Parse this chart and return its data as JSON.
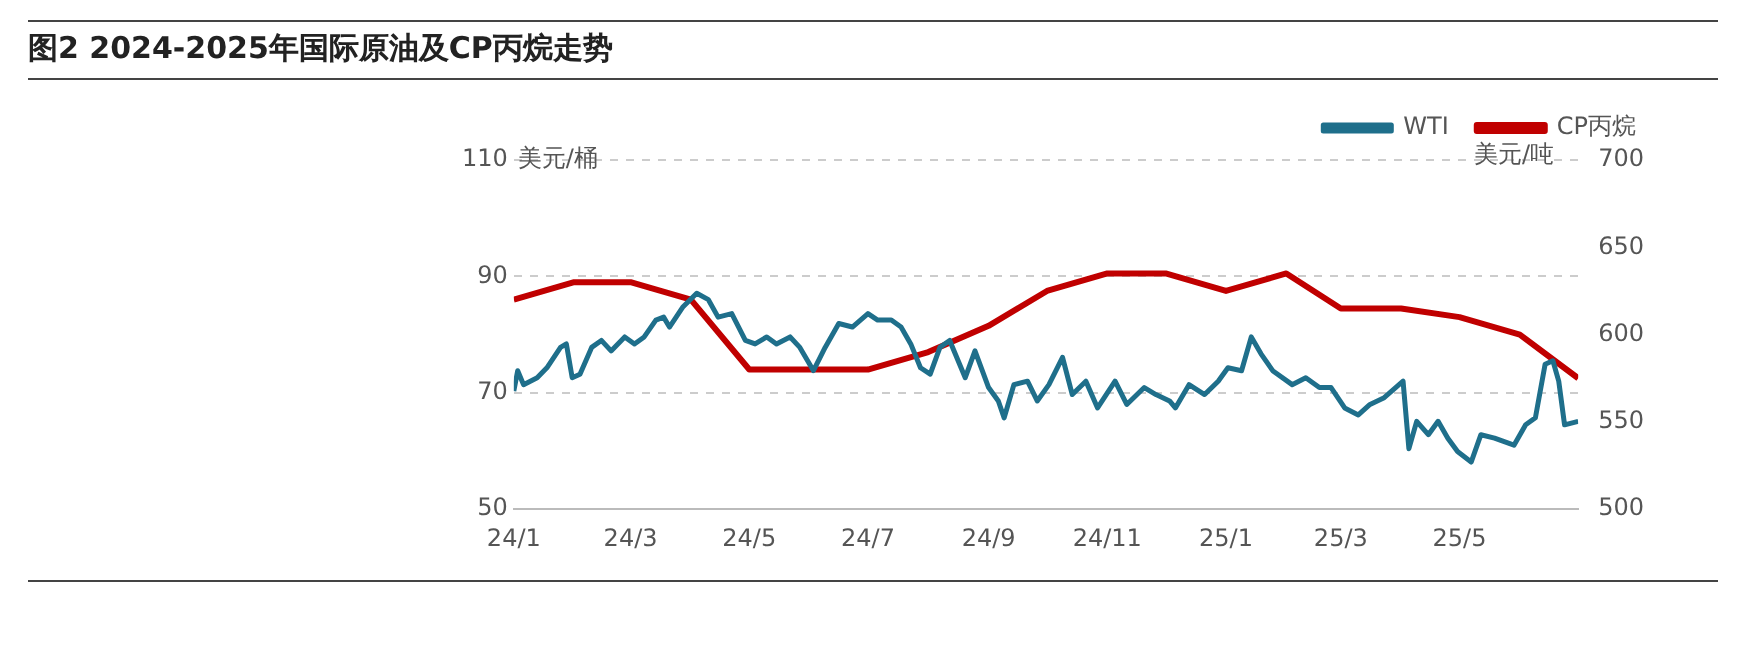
{
  "chart_data": {
    "type": "line",
    "title": "图2 2024-2025年国际原油及CP丙烷走势",
    "ylabel": "美元/桶",
    "y2label": "美元/吨",
    "xlim": [
      "2024-01-01",
      "2025-07-01"
    ],
    "xticks": [
      {
        "value": "2024-01-01",
        "label": "24/1"
      },
      {
        "value": "2024-03-01",
        "label": "24/3"
      },
      {
        "value": "2024-05-01",
        "label": "24/5"
      },
      {
        "value": "2024-07-01",
        "label": "24/7"
      },
      {
        "value": "2024-09-01",
        "label": "24/9"
      },
      {
        "value": "2024-11-01",
        "label": "24/11"
      },
      {
        "value": "2025-01-01",
        "label": "25/1"
      },
      {
        "value": "2025-03-01",
        "label": "25/3"
      },
      {
        "value": "2025-05-01",
        "label": "25/5"
      }
    ],
    "ylim": [
      50,
      110
    ],
    "yticks": [
      50,
      70,
      90,
      110
    ],
    "y2lim": [
      500,
      700
    ],
    "y2ticks": [
      500,
      550,
      600,
      650,
      700
    ],
    "grid": "y",
    "legend": "top right",
    "marker": "none",
    "series": [
      {
        "name": "WTI",
        "color": "#1f6f8b",
        "x": [
          "2024-01-01",
          "2024-01-03",
          "2024-01-06",
          "2024-01-13",
          "2024-01-18",
          "2024-01-25",
          "2024-01-28",
          "2024-01-31",
          "2024-02-04",
          "2024-02-10",
          "2024-02-15",
          "2024-02-20",
          "2024-02-27",
          "2024-03-03",
          "2024-03-08",
          "2024-03-14",
          "2024-03-18",
          "2024-03-21",
          "2024-03-28",
          "2024-04-04",
          "2024-04-10",
          "2024-04-15",
          "2024-04-22",
          "2024-04-29",
          "2024-05-04",
          "2024-05-10",
          "2024-05-15",
          "2024-05-22",
          "2024-05-27",
          "2024-06-03",
          "2024-06-09",
          "2024-06-16",
          "2024-06-23",
          "2024-07-01",
          "2024-07-06",
          "2024-07-13",
          "2024-07-18",
          "2024-07-23",
          "2024-07-28",
          "2024-08-02",
          "2024-08-07",
          "2024-08-12",
          "2024-08-20",
          "2024-08-25",
          "2024-09-01",
          "2024-09-06",
          "2024-09-09",
          "2024-09-14",
          "2024-09-21",
          "2024-09-26",
          "2024-10-02",
          "2024-10-09",
          "2024-10-14",
          "2024-10-21",
          "2024-10-27",
          "2024-11-05",
          "2024-11-11",
          "2024-11-20",
          "2024-11-26",
          "2024-12-03",
          "2024-12-06",
          "2024-12-13",
          "2024-12-21",
          "2024-12-28",
          "2025-01-02",
          "2025-01-09",
          "2025-01-14",
          "2025-01-19",
          "2025-01-25",
          "2025-02-04",
          "2025-02-11",
          "2025-02-18",
          "2025-02-24",
          "2025-03-03",
          "2025-03-10",
          "2025-03-16",
          "2025-03-23",
          "2025-04-02",
          "2025-04-05",
          "2025-04-09",
          "2025-04-15",
          "2025-04-20",
          "2025-04-25",
          "2025-04-30",
          "2025-05-07",
          "2025-05-12",
          "2025-05-19",
          "2025-05-29",
          "2025-06-04",
          "2025-06-09",
          "2025-06-14",
          "2025-06-18",
          "2025-06-21",
          "2025-06-24",
          "2025-07-01"
        ],
        "values": [
          70.3,
          73.8,
          71.4,
          72.6,
          74.3,
          77.8,
          78.4,
          72.6,
          73.2,
          77.8,
          79.0,
          77.2,
          79.6,
          78.4,
          79.6,
          82.5,
          83.0,
          81.3,
          84.8,
          87.1,
          86.0,
          83.0,
          83.6,
          79.0,
          78.4,
          79.6,
          78.4,
          79.6,
          77.8,
          73.8,
          77.8,
          81.9,
          81.3,
          83.6,
          82.5,
          82.5,
          81.3,
          78.4,
          74.3,
          73.2,
          77.8,
          79.0,
          72.6,
          77.2,
          70.9,
          68.6,
          65.7,
          71.4,
          72.0,
          68.6,
          71.4,
          76.1,
          69.7,
          72.0,
          67.4,
          72.0,
          68.0,
          70.9,
          69.7,
          68.6,
          67.4,
          71.4,
          69.7,
          72.0,
          74.3,
          73.8,
          79.6,
          76.7,
          73.8,
          71.4,
          72.6,
          70.9,
          70.9,
          67.4,
          66.2,
          68.0,
          69.1,
          72.0,
          60.4,
          65.1,
          62.8,
          65.1,
          62.2,
          59.9,
          58.1,
          62.8,
          62.2,
          61.0,
          64.5,
          65.7,
          74.9,
          75.5,
          72.0,
          64.5,
          65.1
        ]
      },
      {
        "name": "CP丙烷",
        "color": "#c00000",
        "axis": "y2",
        "x": [
          "2024-01-01",
          "2024-02-01",
          "2024-03-01",
          "2024-04-01",
          "2024-05-01",
          "2024-06-01",
          "2024-07-01",
          "2024-08-01",
          "2024-09-01",
          "2024-10-01",
          "2024-11-01",
          "2024-12-01",
          "2025-01-01",
          "2025-02-01",
          "2025-03-01",
          "2025-04-01",
          "2025-05-01",
          "2025-06-01",
          "2025-07-01"
        ],
        "values": [
          620,
          630,
          630,
          620,
          580,
          580,
          580,
          590,
          605,
          625,
          635,
          635,
          625,
          635,
          615,
          615,
          610,
          600,
          575
        ]
      }
    ]
  }
}
